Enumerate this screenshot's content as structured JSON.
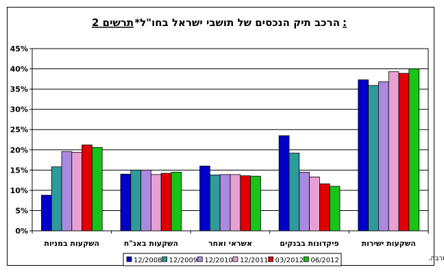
{
  "chart_data": {
    "type": "bar",
    "title_prefix": "תרשים 2:",
    "title_main": "הרכב תיק הנכסים של תושבי ישראל בחו\"ל*",
    "footnote": "*לא כולל נכסי רזרבה.",
    "categories": [
      "השקעות במניות",
      "השקעות באג\"ח",
      "אשראי ואחר",
      "פיקדונות בבנקים",
      "השקעות ישירות"
    ],
    "series": [
      {
        "name": "12/2008",
        "color": "#0000c8",
        "values": [
          8.8,
          14.0,
          16.0,
          23.5,
          37.3
        ]
      },
      {
        "name": "12/2009",
        "color": "#2e9a9a",
        "values": [
          15.8,
          15.0,
          13.8,
          19.2,
          35.9
        ]
      },
      {
        "name": "12/2010",
        "color": "#a98ae0",
        "values": [
          19.6,
          15.0,
          13.9,
          14.5,
          36.8
        ]
      },
      {
        "name": "12/2011",
        "color": "#e6a0d2",
        "values": [
          19.4,
          13.9,
          13.9,
          13.3,
          39.3
        ]
      },
      {
        "name": "03/2012",
        "color": "#e00000",
        "values": [
          21.2,
          14.2,
          13.6,
          11.6,
          38.9
        ]
      },
      {
        "name": "06/2012",
        "color": "#17c417",
        "values": [
          20.6,
          14.5,
          13.5,
          11.0,
          40.0
        ]
      }
    ],
    "yticks": [
      "0%",
      "5%",
      "10%",
      "15%",
      "20%",
      "25%",
      "30%",
      "35%",
      "40%",
      "45%"
    ],
    "ylim": [
      0,
      45
    ],
    "grid": true,
    "legend_position": "bottom"
  }
}
